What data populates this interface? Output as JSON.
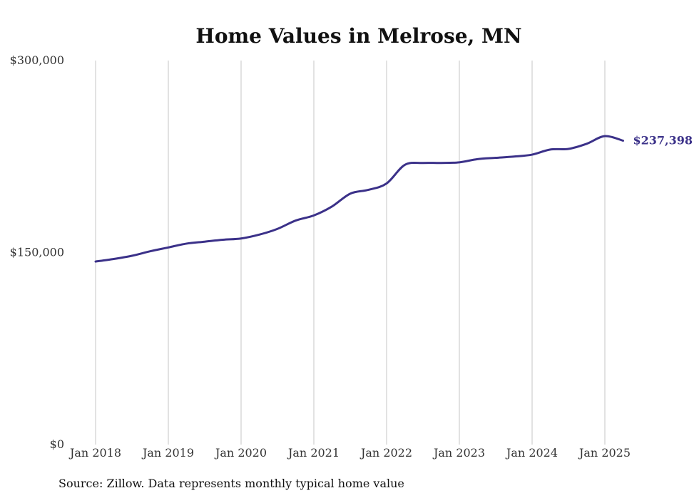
{
  "chart_data": {
    "type": "line",
    "title": "Home Values in Melrose, MN",
    "xlabel": "",
    "ylabel": "",
    "ylim": [
      0,
      300000
    ],
    "y_ticks": [
      {
        "value": 0,
        "label": "$0"
      },
      {
        "value": 150000,
        "label": "$150,000"
      },
      {
        "value": 300000,
        "label": "$300,000"
      }
    ],
    "x_ticks": [
      {
        "value": "2018-01",
        "label": "Jan 2018"
      },
      {
        "value": "2019-01",
        "label": "Jan 2019"
      },
      {
        "value": "2020-01",
        "label": "Jan 2020"
      },
      {
        "value": "2021-01",
        "label": "Jan 2021"
      },
      {
        "value": "2022-01",
        "label": "Jan 2022"
      },
      {
        "value": "2023-01",
        "label": "Jan 2023"
      },
      {
        "value": "2024-01",
        "label": "Jan 2024"
      },
      {
        "value": "2025-01",
        "label": "Jan 2025"
      }
    ],
    "xlim": [
      "2018-01",
      "2025-04"
    ],
    "grid": "vertical",
    "line_color": "#3b3189",
    "series": [
      {
        "x": [
          "2018-01",
          "2018-04",
          "2018-07",
          "2018-10",
          "2019-01",
          "2019-04",
          "2019-07",
          "2019-10",
          "2020-01",
          "2020-04",
          "2020-07",
          "2020-10",
          "2021-01",
          "2021-04",
          "2021-07",
          "2021-10",
          "2022-01",
          "2022-04",
          "2022-07",
          "2022-10",
          "2023-01",
          "2023-04",
          "2023-07",
          "2023-10",
          "2024-01",
          "2024-04",
          "2024-07",
          "2024-10",
          "2025-01",
          "2025-04"
        ],
        "values": [
          143000,
          145000,
          147500,
          151000,
          154000,
          157000,
          158500,
          160000,
          161000,
          164000,
          168500,
          175000,
          179000,
          186000,
          196000,
          199000,
          204000,
          218500,
          220000,
          220000,
          220500,
          223000,
          224000,
          225000,
          226500,
          230500,
          231000,
          235000,
          241000,
          237398
        ]
      }
    ],
    "end_label": "$237,398",
    "source": "Source: Zillow. Data represents monthly typical home value"
  }
}
